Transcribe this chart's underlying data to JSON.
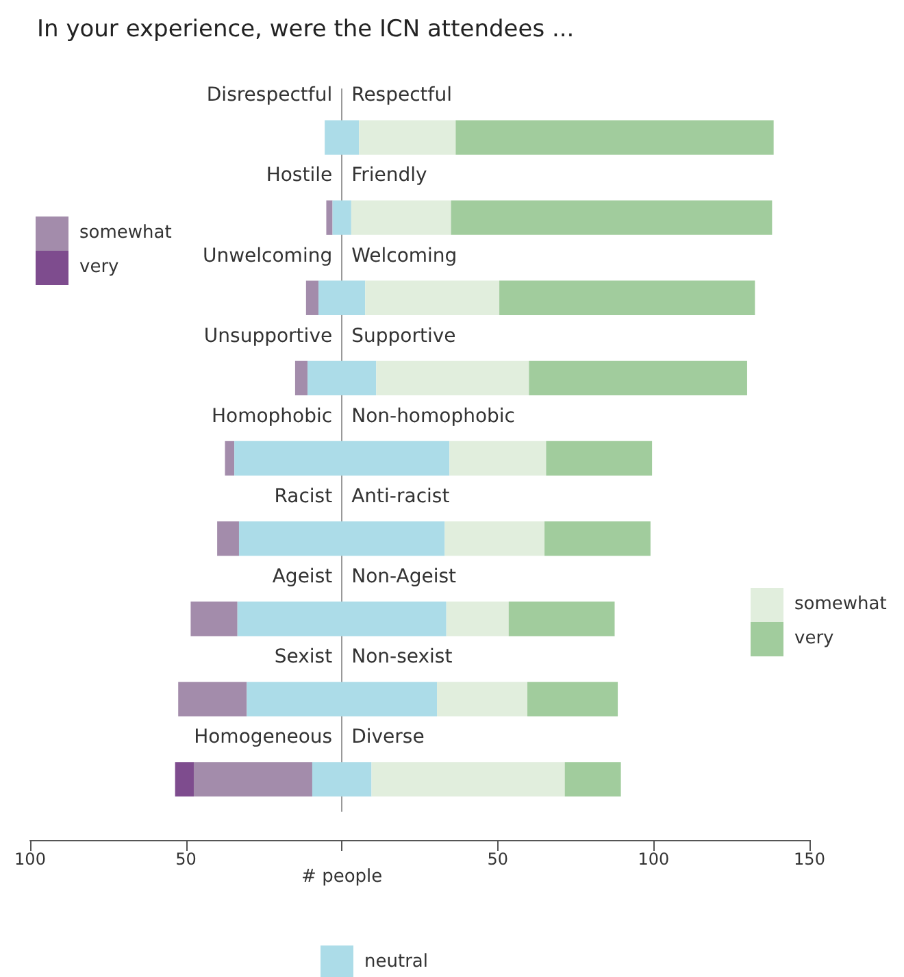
{
  "chart_data": {
    "type": "bar",
    "orientation": "horizontal",
    "title": "In your experience, were the ICN attendees ...",
    "xlabel": "# people",
    "categories": [
      "Respectful",
      "Friendly",
      "Welcoming",
      "Supportive",
      "Non-homophobic",
      "Anti-racist",
      "Non-Ageist",
      "Non-sexist",
      "Diverse"
    ],
    "annotations": [
      "Disrespectful",
      "Hostile",
      "Unwelcoming",
      "Unsupportive",
      "Homophobic",
      "Racist",
      "Ageist",
      "Sexist",
      "Homogeneous"
    ],
    "series": [
      {
        "name": "very",
        "color": "#7e4c8e",
        "base": [
          null,
          null,
          null,
          null,
          null,
          null,
          null,
          null,
          -47.5
        ],
        "values": [
          null,
          null,
          null,
          null,
          null,
          null,
          null,
          null,
          -6
        ]
      },
      {
        "name": "somewhat",
        "color": "#a38cab",
        "base": [
          null,
          -3,
          -7.5,
          -11,
          -34.5,
          -33,
          -33.5,
          -30.5,
          -9.5
        ],
        "values": [
          null,
          -2,
          -4,
          -4,
          -3,
          -7,
          -15,
          -22,
          -38
        ]
      },
      {
        "name": "neutral",
        "color": "#acdce8",
        "base": [
          -5.5,
          -3,
          -7.5,
          -11,
          -34.5,
          -33,
          -33.5,
          -30.5,
          -9.5
        ],
        "values": [
          11,
          6,
          15,
          22,
          69,
          66,
          67,
          61,
          19
        ]
      },
      {
        "name": "somewhat",
        "color": "#e1eedd",
        "base": [
          5.5,
          3,
          7.5,
          11,
          34.5,
          33,
          33.5,
          30.5,
          9.5
        ],
        "values": [
          31,
          32,
          43,
          49,
          31,
          32,
          20,
          29,
          62
        ]
      },
      {
        "name": "very",
        "color": "#a1cc9d",
        "base": [
          36.5,
          35,
          50.5,
          60,
          65.5,
          65,
          53.5,
          59.5,
          71.5
        ],
        "values": [
          102,
          103,
          82,
          70,
          34,
          34,
          34,
          29,
          18
        ]
      }
    ],
    "xlim": [
      -100,
      150
    ],
    "xticks": [
      {
        "value": -100,
        "label": "100"
      },
      {
        "value": -50,
        "label": "50"
      },
      {
        "value": 0,
        "label": null
      },
      50,
      100,
      150
    ],
    "grid": false,
    "legend": "bottom right"
  }
}
